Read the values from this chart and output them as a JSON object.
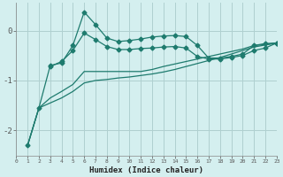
{
  "xlabel": "Humidex (Indice chaleur)",
  "bg_color": "#d4efef",
  "line_color": "#1e7b6e",
  "grid_color": "#afd0d0",
  "x_min": 0,
  "x_max": 23,
  "y_min": -2.5,
  "y_max": 0.55,
  "line1_x": [
    1,
    2,
    3,
    4,
    5,
    6,
    7,
    8,
    9,
    10,
    11,
    12,
    13,
    14,
    15,
    16,
    17,
    18,
    19,
    20,
    21,
    22,
    23
  ],
  "line1_y": [
    -2.3,
    -1.55,
    -0.7,
    -0.65,
    -0.3,
    0.37,
    0.12,
    -0.15,
    -0.22,
    -0.2,
    -0.17,
    -0.13,
    -0.11,
    -0.1,
    -0.12,
    -0.3,
    -0.55,
    -0.55,
    -0.52,
    -0.47,
    -0.3,
    -0.26,
    -0.25
  ],
  "line2_x": [
    3,
    4,
    5,
    6,
    7,
    8,
    9,
    10,
    11,
    12,
    13,
    14,
    15,
    16,
    17,
    18,
    19,
    20,
    21,
    22,
    23
  ],
  "line2_y": [
    -0.72,
    -0.62,
    -0.4,
    -0.05,
    -0.18,
    -0.32,
    -0.38,
    -0.38,
    -0.36,
    -0.35,
    -0.33,
    -0.32,
    -0.35,
    -0.52,
    -0.57,
    -0.57,
    -0.54,
    -0.5,
    -0.4,
    -0.35,
    -0.25
  ],
  "line3_x": [
    1,
    2,
    3,
    4,
    5,
    6,
    7,
    8,
    9,
    10,
    11,
    12,
    13,
    14,
    15,
    16,
    17,
    18,
    19,
    20,
    21,
    22,
    23
  ],
  "line3_y": [
    -2.3,
    -1.55,
    -1.35,
    -1.22,
    -1.08,
    -0.82,
    -0.82,
    -0.82,
    -0.82,
    -0.82,
    -0.82,
    -0.78,
    -0.72,
    -0.67,
    -0.62,
    -0.57,
    -0.52,
    -0.47,
    -0.42,
    -0.37,
    -0.3,
    -0.28,
    -0.25
  ],
  "line4_x": [
    1,
    2,
    3,
    4,
    5,
    6,
    7,
    8,
    9,
    10,
    11,
    12,
    13,
    14,
    15,
    16,
    17,
    18,
    19,
    20,
    21,
    22,
    23
  ],
  "line4_y": [
    -2.3,
    -1.55,
    -1.45,
    -1.35,
    -1.22,
    -1.05,
    -1.0,
    -0.98,
    -0.95,
    -0.93,
    -0.9,
    -0.87,
    -0.83,
    -0.78,
    -0.72,
    -0.66,
    -0.6,
    -0.54,
    -0.47,
    -0.4,
    -0.33,
    -0.29,
    -0.25
  ],
  "yticks": [
    -2,
    -1,
    0
  ],
  "xticks": [
    0,
    1,
    2,
    3,
    4,
    5,
    6,
    7,
    8,
    9,
    10,
    11,
    12,
    13,
    14,
    15,
    16,
    17,
    18,
    19,
    20,
    21,
    22,
    23
  ]
}
